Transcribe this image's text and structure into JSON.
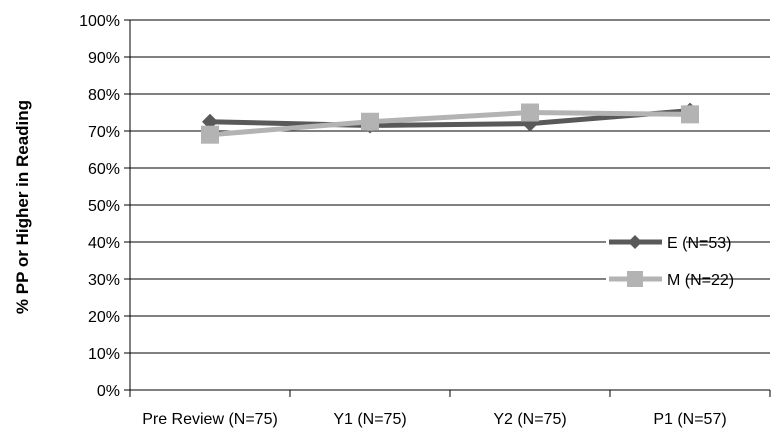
{
  "chart_data": {
    "type": "line",
    "title": "",
    "xlabel": "",
    "ylabel": "% PP or Higher in Reading",
    "categories": [
      "Pre Review (N=75)",
      "Y1 (N=75)",
      "Y2 (N=75)",
      "P1 (N=57)"
    ],
    "ylim": [
      0,
      100
    ],
    "yticks": [
      0,
      10,
      20,
      30,
      40,
      50,
      60,
      70,
      80,
      90,
      100
    ],
    "ytick_labels": [
      "0%",
      "10%",
      "20%",
      "30%",
      "40%",
      "50%",
      "60%",
      "70%",
      "80%",
      "90%",
      "100%"
    ],
    "grid": "horizontal",
    "legend_position": "right",
    "series": [
      {
        "name": "E (N=53)",
        "values": [
          72.5,
          71.5,
          72,
          75.5
        ],
        "color": "#595959",
        "marker": "diamond"
      },
      {
        "name": "M (N=22)",
        "values": [
          69,
          72.5,
          75,
          74.5
        ],
        "color": "#b3b3b3",
        "marker": "square"
      }
    ]
  }
}
